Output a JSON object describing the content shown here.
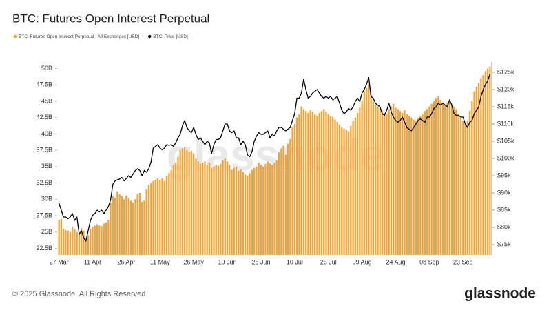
{
  "chart_data": {
    "type": "bar",
    "title": "BTC: Futures Open Interest Perpetual",
    "watermark": "glassnode",
    "categories": [
      "27 Mar",
      null,
      null,
      null,
      null,
      null,
      null,
      null,
      null,
      null,
      null,
      null,
      null,
      null,
      null,
      "11 Apr",
      null,
      null,
      null,
      null,
      null,
      null,
      null,
      null,
      null,
      null,
      null,
      null,
      null,
      null,
      "26 Apr",
      null,
      null,
      null,
      null,
      null,
      null,
      null,
      null,
      null,
      null,
      null,
      null,
      null,
      null,
      "11 May",
      null,
      null,
      null,
      null,
      null,
      null,
      null,
      null,
      null,
      null,
      null,
      null,
      null,
      null,
      "26 May",
      null,
      null,
      null,
      null,
      null,
      null,
      null,
      null,
      null,
      null,
      null,
      null,
      null,
      null,
      "10 Jun",
      null,
      null,
      null,
      null,
      null,
      null,
      null,
      null,
      null,
      null,
      null,
      null,
      null,
      null,
      "25 Jun",
      null,
      null,
      null,
      null,
      null,
      null,
      null,
      null,
      null,
      null,
      null,
      null,
      null,
      null,
      "10 Jul",
      null,
      null,
      null,
      null,
      null,
      null,
      null,
      null,
      null,
      null,
      null,
      null,
      null,
      null,
      "25 Jul",
      null,
      null,
      null,
      null,
      null,
      null,
      null,
      null,
      null,
      null,
      null,
      null,
      null,
      null,
      "09 Aug",
      null,
      null,
      null,
      null,
      null,
      null,
      null,
      null,
      null,
      null,
      null,
      null,
      null,
      null,
      "24 Aug",
      null,
      null,
      null,
      null,
      null,
      null,
      null,
      null,
      null,
      null,
      null,
      null,
      null,
      null,
      "08 Sep",
      null,
      null,
      null,
      null,
      null,
      null,
      null,
      null,
      null,
      null,
      null,
      null,
      null,
      null,
      "23 Sep",
      null,
      null,
      null,
      null,
      null,
      null,
      null,
      null,
      null,
      null,
      null,
      null
    ],
    "series": [
      {
        "name": "BTC: Futures Open Interest Perpetual - All Exchanges [USD]",
        "type": "bar",
        "color": "#f7a135",
        "values": [
          26.8,
          27.0,
          25.5,
          25.3,
          25.2,
          25.0,
          25.8,
          25.4,
          25.0,
          24.8,
          25.6,
          25.2,
          24.0,
          24.5,
          25.5,
          25.8,
          26.0,
          26.2,
          26.0,
          25.9,
          26.3,
          26.5,
          26.8,
          29.5,
          30.5,
          30.2,
          31.2,
          30.8,
          30.5,
          30.0,
          30.6,
          30.2,
          29.8,
          29.5,
          30.0,
          30.8,
          31.0,
          29.6,
          29.8,
          31.5,
          32.2,
          32.5,
          32.8,
          33.0,
          33.2,
          33.0,
          33.2,
          32.8,
          33.5,
          34.0,
          34.5,
          35.2,
          35.6,
          36.5,
          37.5,
          37.8,
          38.0,
          37.5,
          37.2,
          37.4,
          37.0,
          36.2,
          35.8,
          35.5,
          35.6,
          35.8,
          35.2,
          35.6,
          34.8,
          35.0,
          35.3,
          35.1,
          35.4,
          36.0,
          36.2,
          35.8,
          35.2,
          34.5,
          34.8,
          35.0,
          34.4,
          34.6,
          34.2,
          33.8,
          33.6,
          34.0,
          34.5,
          34.8,
          35.0,
          35.6,
          35.2,
          35.0,
          35.4,
          35.8,
          35.5,
          35.2,
          35.6,
          36.0,
          37.2,
          37.8,
          38.2,
          36.8,
          38.5,
          39.2,
          41.0,
          41.5,
          42.5,
          43.0,
          44.2,
          43.8,
          43.5,
          43.2,
          43.6,
          43.4,
          43.0,
          42.8,
          43.2,
          43.5,
          43.8,
          43.4,
          43.0,
          42.8,
          42.6,
          42.2,
          41.8,
          41.4,
          41.0,
          40.8,
          40.6,
          40.4,
          41.2,
          42.0,
          42.5,
          43.2,
          44.0,
          45.0,
          46.5,
          47.0,
          47.6,
          46.2,
          45.0,
          44.5,
          44.2,
          43.8,
          43.5,
          43.2,
          43.0,
          43.8,
          44.2,
          44.6,
          44.0,
          43.8,
          43.5,
          43.2,
          43.6,
          43.0,
          42.8,
          42.5,
          42.2,
          42.0,
          42.4,
          42.8,
          43.0,
          43.5,
          43.8,
          44.2,
          44.6,
          45.0,
          45.5,
          45.8,
          45.2,
          44.8,
          44.5,
          44.8,
          45.0,
          44.6,
          44.2,
          43.8,
          43.0,
          42.4,
          42.0,
          41.5,
          42.0,
          43.5,
          45.0,
          46.5,
          47.2,
          47.8,
          48.5,
          49.0,
          49.6,
          50.0,
          50.3
        ]
      },
      {
        "name": "BTC: Price [USD]",
        "type": "line",
        "axis": "y2",
        "color": "#000000",
        "values": [
          87000,
          85000,
          83000,
          83000,
          82500,
          83000,
          84000,
          82000,
          83000,
          78000,
          79000,
          77000,
          76000,
          79000,
          82000,
          83500,
          84000,
          85000,
          84500,
          85000,
          84000,
          85000,
          86000,
          88000,
          92500,
          93500,
          93800,
          94000,
          94500,
          93500,
          94200,
          95000,
          94500,
          95500,
          96500,
          97000,
          96500,
          95000,
          96500,
          96000,
          97000,
          99000,
          103000,
          103500,
          104000,
          103000,
          102500,
          103000,
          104000,
          103800,
          104000,
          103500,
          104500,
          106000,
          107000,
          109500,
          111000,
          109000,
          108000,
          107500,
          109000,
          107000,
          105500,
          106000,
          105000,
          104000,
          105000,
          104500,
          101500,
          104000,
          105500,
          105500,
          106000,
          108000,
          110000,
          110000,
          108000,
          107500,
          108000,
          106000,
          106000,
          104000,
          105000,
          104000,
          101000,
          100500,
          102000,
          105000,
          106500,
          107500,
          107000,
          107000,
          107500,
          108000,
          106000,
          107000,
          106500,
          108000,
          109000,
          109000,
          108500,
          108000,
          108500,
          109000,
          111000,
          113000,
          117500,
          117500,
          119000,
          123000,
          120000,
          117500,
          118000,
          119000,
          119500,
          120000,
          119000,
          118000,
          117500,
          118000,
          117500,
          118000,
          117000,
          117500,
          118000,
          116000,
          114000,
          113000,
          113500,
          114500,
          114000,
          115000,
          116500,
          117500,
          116500,
          119000,
          120000,
          121500,
          123500,
          118000,
          117500,
          116000,
          115500,
          115000,
          113000,
          112500,
          114000,
          116000,
          113500,
          112000,
          111000,
          110500,
          111000,
          112000,
          110500,
          109000,
          108500,
          108000,
          109000,
          110000,
          111000,
          111500,
          111000,
          110500,
          112000,
          112000,
          113000,
          114500,
          115000,
          116000,
          115500,
          116000,
          115500,
          115000,
          117000,
          115500,
          113000,
          112500,
          112500,
          112000,
          112000,
          110000,
          109000,
          110500,
          111000,
          113000,
          114000,
          115000,
          118000,
          120000,
          121500,
          122500,
          124500
        ]
      }
    ],
    "ylim": [
      21.5,
      51
    ],
    "yticks": [
      {
        "value": 22.5,
        "label": "22.5B"
      },
      {
        "value": 25,
        "label": "25B"
      },
      {
        "value": 27.5,
        "label": "27.5B"
      },
      {
        "value": 30,
        "label": "30B"
      },
      {
        "value": 32.5,
        "label": "32.5B"
      },
      {
        "value": 35,
        "label": "35B"
      },
      {
        "value": 37.5,
        "label": "37.5B"
      },
      {
        "value": 40,
        "label": "40B"
      },
      {
        "value": 42.5,
        "label": "42.5B"
      },
      {
        "value": 45,
        "label": "45B"
      },
      {
        "value": 47.5,
        "label": "47.5B"
      },
      {
        "value": 50,
        "label": "50B"
      }
    ],
    "y2lim": [
      72000,
      128000
    ],
    "y2ticks": [
      {
        "value": 75000,
        "label": "$75k"
      },
      {
        "value": 80000,
        "label": "$80k"
      },
      {
        "value": 85000,
        "label": "$85k"
      },
      {
        "value": 90000,
        "label": "$90k"
      },
      {
        "value": 95000,
        "label": "$95k"
      },
      {
        "value": 100000,
        "label": "$100k"
      },
      {
        "value": 105000,
        "label": "$105k"
      },
      {
        "value": 110000,
        "label": "$110k"
      },
      {
        "value": 115000,
        "label": "$115k"
      },
      {
        "value": 120000,
        "label": "$120k"
      },
      {
        "value": 125000,
        "label": "$125k"
      }
    ],
    "grid": false,
    "legend": "top-left"
  },
  "footer": {
    "copyright": "© 2025 Glassnode. All Rights Reserved.",
    "logo": "glassnode"
  }
}
